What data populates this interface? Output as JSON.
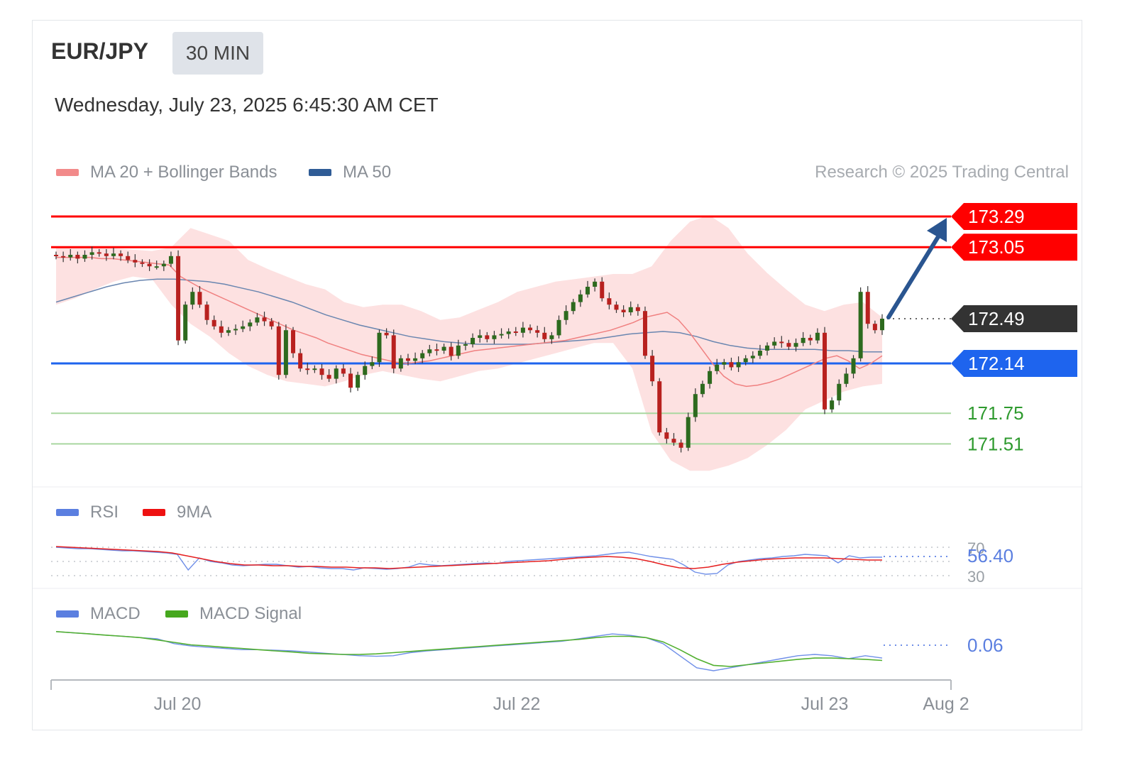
{
  "header": {
    "pair": "EUR/JPY",
    "timeframe": "30 MIN",
    "timestamp": "Wednesday, July 23, 2025 6:45:30 AM CET",
    "credit": "Research © 2025 Trading Central"
  },
  "legend": {
    "price": [
      {
        "label": "MA 20 + Bollinger Bands",
        "color": "#f28a8a"
      },
      {
        "label": "MA 50",
        "color": "#2f5c96"
      }
    ],
    "rsi": [
      {
        "label": "RSI",
        "color": "#5b7fe0"
      },
      {
        "label": "9MA",
        "color": "#ee1111"
      }
    ],
    "macd": [
      {
        "label": "MACD",
        "color": "#5b7fe0"
      },
      {
        "label": "MACD Signal",
        "color": "#46a81e"
      }
    ]
  },
  "colors": {
    "resistance": "#ff0000",
    "pivot": "#1e64ee",
    "support": "#2e9a2e",
    "last_price": "#333333",
    "bull_candle": "#2d6a1e",
    "bear_candle": "#b8211f",
    "forecast_arrow": "#2a5590"
  },
  "chart_data": {
    "type": "candlestick",
    "instrument": "EUR/JPY",
    "interval": "30 MIN",
    "ylim": [
      171.25,
      173.5
    ],
    "x_ticks": [
      "Jul 20",
      "Jul 22",
      "Jul 23",
      "Aug 2"
    ],
    "levels": [
      {
        "label": "173.29",
        "value": 173.29,
        "kind": "resistance"
      },
      {
        "label": "173.05",
        "value": 173.05,
        "kind": "resistance"
      },
      {
        "label": "172.49",
        "value": 172.49,
        "kind": "last"
      },
      {
        "label": "172.14",
        "value": 172.14,
        "kind": "pivot"
      },
      {
        "label": "171.75",
        "value": 171.75,
        "kind": "support"
      },
      {
        "label": "171.51",
        "value": 171.51,
        "kind": "support"
      }
    ],
    "forecast": {
      "from": 172.49,
      "to": 173.29,
      "direction": "up"
    },
    "close": [
      172.98,
      172.97,
      172.99,
      172.96,
      172.99,
      173.01,
      173.0,
      172.98,
      173.0,
      172.98,
      172.95,
      172.93,
      172.92,
      172.9,
      172.9,
      172.92,
      172.98,
      172.32,
      172.6,
      172.7,
      172.6,
      172.48,
      172.43,
      172.38,
      172.4,
      172.41,
      172.43,
      172.46,
      172.5,
      172.47,
      172.43,
      172.05,
      172.4,
      172.22,
      172.1,
      172.09,
      172.1,
      172.05,
      172.02,
      172.1,
      172.06,
      171.95,
      172.05,
      172.12,
      172.15,
      172.38,
      172.36,
      172.1,
      172.18,
      172.16,
      172.18,
      172.22,
      172.25,
      172.24,
      172.27,
      172.2,
      172.28,
      172.29,
      172.34,
      172.36,
      172.33,
      172.36,
      172.37,
      172.39,
      172.38,
      172.42,
      172.4,
      172.38,
      172.33,
      172.36,
      172.48,
      172.55,
      172.62,
      172.68,
      172.74,
      172.78,
      172.65,
      172.6,
      172.56,
      172.54,
      172.58,
      172.55,
      172.2,
      172.0,
      171.6,
      171.55,
      171.52,
      171.48,
      171.72,
      171.9,
      171.98,
      172.08,
      172.13,
      172.15,
      172.11,
      172.15,
      172.18,
      172.2,
      172.24,
      172.28,
      172.31,
      172.3,
      172.27,
      172.3,
      172.34,
      172.32,
      172.38,
      171.78,
      171.85,
      171.98,
      172.06,
      172.18,
      172.7,
      172.45,
      172.4,
      172.49
    ],
    "ma20": [
      172.97,
      172.97,
      172.97,
      172.97,
      172.96,
      172.96,
      172.95,
      172.94,
      172.93,
      172.92,
      172.91,
      172.82,
      172.77,
      172.72,
      172.68,
      172.64,
      172.6,
      172.56,
      172.52,
      172.48,
      172.44,
      172.4,
      172.37,
      172.34,
      172.3,
      172.27,
      172.24,
      172.21,
      172.19,
      172.17,
      172.15,
      172.14,
      172.15,
      172.16,
      172.18,
      172.2,
      172.22,
      172.24,
      172.25,
      172.26,
      172.27,
      172.28,
      172.29,
      172.3,
      172.31,
      172.32,
      172.34,
      172.36,
      172.38,
      172.4,
      172.43,
      172.46,
      172.5,
      172.52,
      172.54,
      172.48,
      172.38,
      172.26,
      172.14,
      172.04,
      171.98,
      171.96,
      171.97,
      171.99,
      172.02,
      172.06,
      172.1,
      172.14,
      172.18,
      172.2,
      172.16,
      172.1,
      172.14,
      172.2
    ],
    "ma50": [
      172.62,
      172.66,
      172.7,
      172.74,
      172.77,
      172.79,
      172.8,
      172.8,
      172.79,
      172.78,
      172.76,
      172.73,
      172.7,
      172.66,
      172.62,
      172.57,
      172.52,
      172.48,
      172.44,
      172.41,
      172.38,
      172.35,
      172.33,
      172.31,
      172.3,
      172.29,
      172.29,
      172.29,
      172.29,
      172.3,
      172.31,
      172.32,
      172.33,
      172.35,
      172.37,
      172.38,
      172.39,
      172.38,
      172.35,
      172.31,
      172.28,
      172.26,
      172.25,
      172.25,
      172.25,
      172.25,
      172.24,
      172.24,
      172.23,
      172.23
    ],
    "bb_upper": [
      173.05,
      173.05,
      173.05,
      173.04,
      173.03,
      173.02,
      173.05,
      173.2,
      173.15,
      173.1,
      172.95,
      172.88,
      172.82,
      172.76,
      172.72,
      172.62,
      172.58,
      172.6,
      172.6,
      172.55,
      172.48,
      172.5,
      172.56,
      172.62,
      172.7,
      172.74,
      172.78,
      172.8,
      172.82,
      172.84,
      172.84,
      172.9,
      173.1,
      173.25,
      173.3,
      173.2,
      173.0,
      172.85,
      172.72,
      172.6,
      172.55,
      172.6,
      172.62,
      172.5
    ],
    "bb_lower": [
      172.6,
      172.65,
      172.72,
      172.78,
      172.82,
      172.8,
      172.6,
      172.45,
      172.35,
      172.22,
      172.12,
      172.05,
      172.0,
      171.98,
      171.96,
      172.0,
      172.05,
      172.08,
      172.05,
      172.02,
      172.0,
      172.04,
      172.08,
      172.1,
      172.14,
      172.18,
      172.22,
      172.26,
      172.3,
      172.3,
      172.1,
      171.6,
      171.38,
      171.3,
      171.3,
      171.34,
      171.4,
      171.5,
      171.62,
      171.78,
      171.85,
      171.92,
      171.96,
      171.98
    ],
    "rsi": {
      "last": "56.40",
      "levels": [
        "70",
        "50",
        "30"
      ],
      "rsi_values": [
        70,
        69,
        68,
        68,
        67,
        66,
        65,
        65,
        64,
        63,
        62,
        60,
        38,
        55,
        50,
        48,
        45,
        44,
        45,
        46,
        46,
        44,
        42,
        43,
        41,
        40,
        40,
        38,
        41,
        40,
        39,
        40,
        42,
        47,
        45,
        44,
        45,
        46,
        47,
        48,
        47,
        50,
        51,
        52,
        53,
        54,
        55,
        56,
        57,
        58,
        60,
        62,
        63,
        60,
        57,
        55,
        53,
        45,
        35,
        32,
        33,
        45,
        50,
        52,
        54,
        55,
        57,
        58,
        60,
        59,
        58,
        48,
        58,
        55,
        56,
        56
      ],
      "ma9_values": [
        71,
        70,
        69,
        68,
        67,
        66,
        65,
        64,
        62,
        58,
        54,
        50,
        47,
        45,
        45,
        44,
        44,
        43,
        43,
        42,
        42,
        41,
        41,
        40,
        41,
        42,
        43,
        44,
        45,
        46,
        47,
        48,
        49,
        50,
        51,
        53,
        55,
        56,
        57,
        56,
        54,
        50,
        45,
        41,
        40,
        42,
        46,
        49,
        51,
        53,
        54,
        55,
        55,
        55,
        54,
        53,
        52,
        52
      ]
    },
    "macd": {
      "last": "0.06",
      "macd_values": [
        0.5,
        0.48,
        0.46,
        0.44,
        0.42,
        0.4,
        0.38,
        0.3,
        0.26,
        0.24,
        0.22,
        0.2,
        0.2,
        0.19,
        0.18,
        0.16,
        0.14,
        0.12,
        0.1,
        0.09,
        0.1,
        0.15,
        0.18,
        0.2,
        0.22,
        0.24,
        0.26,
        0.28,
        0.3,
        0.32,
        0.34,
        0.38,
        0.42,
        0.46,
        0.44,
        0.4,
        0.3,
        0.1,
        -0.1,
        -0.15,
        -0.1,
        -0.05,
        0.0,
        0.05,
        0.1,
        0.12,
        0.1,
        0.05,
        0.1,
        0.06
      ],
      "signal_values": [
        0.5,
        0.48,
        0.46,
        0.44,
        0.42,
        0.4,
        0.36,
        0.32,
        0.28,
        0.26,
        0.24,
        0.22,
        0.2,
        0.18,
        0.16,
        0.14,
        0.13,
        0.12,
        0.12,
        0.13,
        0.15,
        0.17,
        0.19,
        0.21,
        0.23,
        0.25,
        0.27,
        0.29,
        0.31,
        0.33,
        0.35,
        0.37,
        0.4,
        0.42,
        0.42,
        0.4,
        0.33,
        0.2,
        0.05,
        -0.06,
        -0.08,
        -0.05,
        -0.02,
        0.01,
        0.04,
        0.06,
        0.06,
        0.05,
        0.04,
        0.02
      ]
    }
  }
}
